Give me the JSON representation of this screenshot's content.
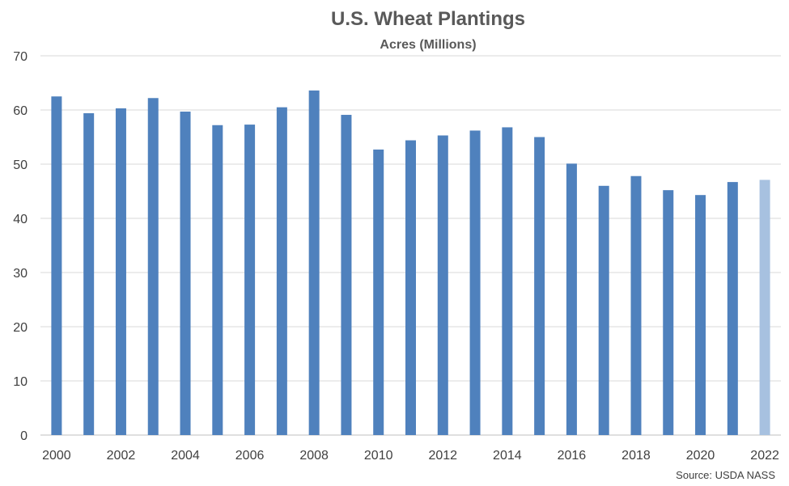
{
  "chart_data": {
    "type": "bar",
    "title": "U.S. Wheat Plantings",
    "subtitle": "Acres (Millions)",
    "source": "Source: USDA NASS",
    "categories": [
      "2000",
      "2001",
      "2002",
      "2003",
      "2004",
      "2005",
      "2006",
      "2007",
      "2008",
      "2009",
      "2010",
      "2011",
      "2012",
      "2013",
      "2014",
      "2015",
      "2016",
      "2017",
      "2018",
      "2019",
      "2020",
      "2021",
      "2022"
    ],
    "x_tick_labels": [
      "2000",
      "2002",
      "2004",
      "2006",
      "2008",
      "2010",
      "2012",
      "2014",
      "2016",
      "2018",
      "2020",
      "2022"
    ],
    "values": [
      62.5,
      59.4,
      60.3,
      62.2,
      59.7,
      57.2,
      57.3,
      60.5,
      63.6,
      59.1,
      52.7,
      54.4,
      55.3,
      56.2,
      56.8,
      55.0,
      50.1,
      46.0,
      47.8,
      45.2,
      44.3,
      46.7,
      47.1
    ],
    "highlight_category": "2022",
    "ylim": [
      0,
      70
    ],
    "yticks": [
      0,
      10,
      20,
      30,
      40,
      50,
      60,
      70
    ],
    "grid": true,
    "xlabel": "",
    "ylabel": "",
    "colors": {
      "bar": "#4f81bd",
      "highlight": "#a7c1e0",
      "grid": "#d9d9d9",
      "axis": "#bfbfbf"
    }
  }
}
